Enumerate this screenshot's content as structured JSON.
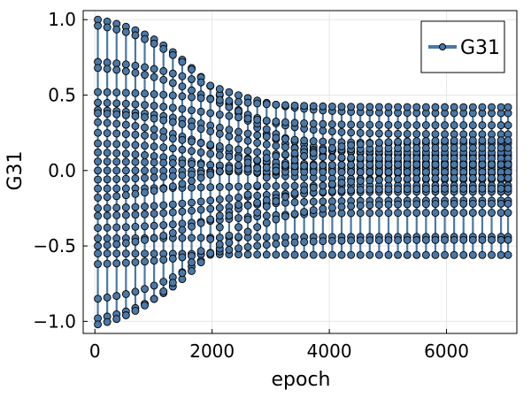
{
  "chart_data": {
    "type": "scatter",
    "title": "",
    "xlabel": "epoch",
    "ylabel": "G31",
    "xlim": [
      -200,
      7200
    ],
    "ylim": [
      -1.08,
      1.06
    ],
    "xticks": [
      0,
      2000,
      4000,
      6000
    ],
    "xtick_labels": [
      "0",
      "2000",
      "4000",
      "6000"
    ],
    "yticks": [
      -1.0,
      -0.5,
      0.0,
      0.5,
      1.0
    ],
    "ytick_labels": [
      "−1.0",
      "−0.5",
      "0.0",
      "0.5",
      "1.0"
    ],
    "grid": true,
    "legend": {
      "position": "top-right",
      "entries": [
        "G31"
      ]
    },
    "series_style": {
      "line_color": "#4a78a8",
      "marker_fill": "#4a78a8",
      "marker_edge": "#000000"
    },
    "x": [
      50,
      210,
      370,
      530,
      690,
      850,
      1010,
      1170,
      1330,
      1490,
      1650,
      1810,
      1970,
      2130,
      2290,
      2450,
      2610,
      2770,
      2930,
      3090,
      3250,
      3410,
      3570,
      3730,
      3890,
      4050,
      4210,
      4370,
      4530,
      4690,
      4850,
      5010,
      5170,
      5330,
      5490,
      5650,
      5810,
      5970,
      6130,
      6290,
      6450,
      6610,
      6770,
      6930,
      7050
    ],
    "trajectories": [
      {
        "start": 1.0,
        "end": 0.05
      },
      {
        "start": 0.96,
        "end": 0.1
      },
      {
        "start": 0.72,
        "end": 0.38
      },
      {
        "start": 0.68,
        "end": 0.24
      },
      {
        "start": 0.52,
        "end": 0.42
      },
      {
        "start": 0.45,
        "end": 0.3
      },
      {
        "start": 0.4,
        "end": 0.18
      },
      {
        "start": 0.38,
        "end": 0.12
      },
      {
        "start": 0.32,
        "end": -0.02
      },
      {
        "start": 0.25,
        "end": 0.08
      },
      {
        "start": 0.18,
        "end": 0.03
      },
      {
        "start": 0.12,
        "end": -0.06
      },
      {
        "start": 0.06,
        "end": 0.01
      },
      {
        "start": 0.0,
        "end": -0.01
      },
      {
        "start": -0.06,
        "end": 0.04
      },
      {
        "start": -0.12,
        "end": -0.1
      },
      {
        "start": -0.18,
        "end": 0.15
      },
      {
        "start": -0.25,
        "end": -0.14
      },
      {
        "start": -0.3,
        "end": -0.2
      },
      {
        "start": -0.38,
        "end": -0.28
      },
      {
        "start": -0.45,
        "end": -0.44
      },
      {
        "start": -0.5,
        "end": -0.12
      },
      {
        "start": -0.55,
        "end": -0.56
      },
      {
        "start": -0.62,
        "end": -0.46
      },
      {
        "start": -0.85,
        "end": -0.22
      },
      {
        "start": -0.98,
        "end": -0.05
      },
      {
        "start": -1.02,
        "end": 0.2
      }
    ]
  }
}
